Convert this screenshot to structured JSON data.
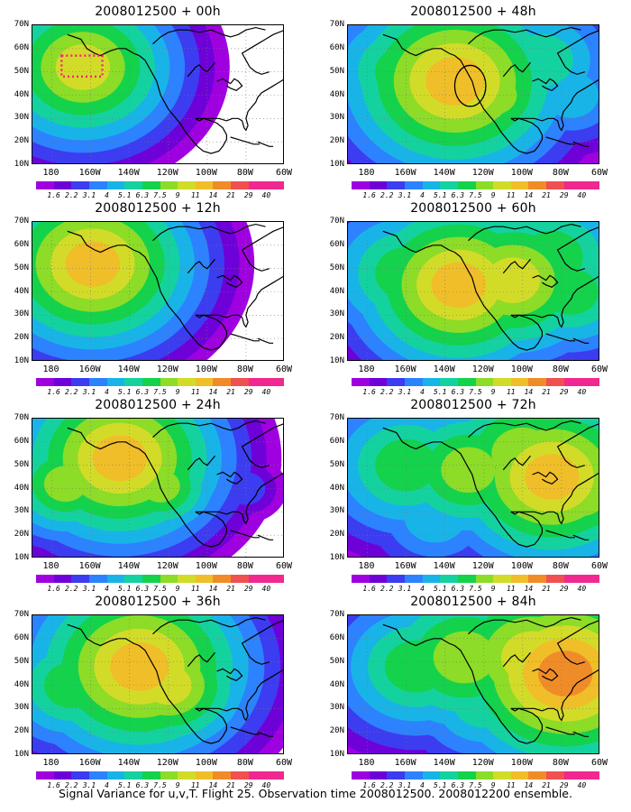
{
  "chart_data": {
    "type": "heatmap",
    "colorbar": {
      "levels": [
        "1.6",
        "2.2",
        "3.1",
        "4",
        "5.1",
        "6.3",
        "7.5",
        "9",
        "11",
        "14",
        "21",
        "29",
        "40"
      ],
      "colors": [
        "#9f00e0",
        "#6e00d8",
        "#3c3cf0",
        "#2c82ff",
        "#18b4e8",
        "#14d2a0",
        "#14d24c",
        "#8cdc28",
        "#d2dc28",
        "#f0be28",
        "#f08c28",
        "#f05050",
        "#f02890"
      ]
    },
    "axes": {
      "ylabels": [
        "70N",
        "60N",
        "50N",
        "40N",
        "30N",
        "20N",
        "10N"
      ],
      "xlabels": [
        "180",
        "160W",
        "140W",
        "120W",
        "100W",
        "80W",
        "60W"
      ],
      "lon_range": [
        170,
        300
      ],
      "lat_range": [
        10,
        70
      ],
      "grid": true
    },
    "panels": [
      {
        "title": "2008012500 + 00h",
        "max_level": 9,
        "blobs": [
          {
            "lon": 196,
            "lat": 52,
            "r": 14,
            "s": 9
          },
          {
            "lon": 190,
            "lat": 42,
            "r": 10,
            "s": 7
          },
          {
            "lon": 176,
            "lat": 62,
            "r": 12,
            "s": 5
          },
          {
            "lon": 222,
            "lat": 46,
            "r": 12,
            "s": 5
          },
          {
            "lon": 205,
            "lat": 36,
            "r": 8,
            "s": 3
          }
        ],
        "dashed_box": {
          "lon": [
            185,
            206
          ],
          "lat": [
            48,
            57
          ]
        }
      },
      {
        "title": "2008012500 + 12h",
        "max_level": 10,
        "blobs": [
          {
            "lon": 201,
            "lat": 52,
            "r": 14,
            "s": 10
          },
          {
            "lon": 188,
            "lat": 44,
            "r": 12,
            "s": 7
          },
          {
            "lon": 225,
            "lat": 48,
            "r": 14,
            "s": 6
          },
          {
            "lon": 208,
            "lat": 35,
            "r": 12,
            "s": 4
          },
          {
            "lon": 240,
            "lat": 38,
            "r": 10,
            "s": 3
          }
        ]
      },
      {
        "title": "2008012500 + 24h",
        "max_level": 10,
        "blobs": [
          {
            "lon": 215,
            "lat": 53,
            "r": 14,
            "s": 10
          },
          {
            "lon": 187,
            "lat": 42,
            "r": 11,
            "s": 8
          },
          {
            "lon": 236,
            "lat": 41,
            "r": 10,
            "s": 8
          },
          {
            "lon": 200,
            "lat": 30,
            "r": 14,
            "s": 5
          },
          {
            "lon": 255,
            "lat": 55,
            "r": 12,
            "s": 4
          },
          {
            "lon": 280,
            "lat": 40,
            "r": 10,
            "s": 3
          }
        ]
      },
      {
        "title": "2008012500 + 36h",
        "max_level": 10,
        "blobs": [
          {
            "lon": 225,
            "lat": 48,
            "r": 15,
            "s": 10
          },
          {
            "lon": 240,
            "lat": 40,
            "r": 12,
            "s": 9
          },
          {
            "lon": 190,
            "lat": 40,
            "r": 14,
            "s": 7
          },
          {
            "lon": 205,
            "lat": 30,
            "r": 16,
            "s": 5
          },
          {
            "lon": 260,
            "lat": 55,
            "r": 14,
            "s": 5
          },
          {
            "lon": 285,
            "lat": 45,
            "r": 12,
            "s": 3
          }
        ]
      },
      {
        "title": "2008012500 + 48h",
        "max_level": 10,
        "blobs": [
          {
            "lon": 225,
            "lat": 46,
            "r": 15,
            "s": 10
          },
          {
            "lon": 245,
            "lat": 40,
            "r": 12,
            "s": 8
          },
          {
            "lon": 200,
            "lat": 50,
            "r": 16,
            "s": 7
          },
          {
            "lon": 270,
            "lat": 55,
            "r": 16,
            "s": 6
          },
          {
            "lon": 215,
            "lat": 30,
            "r": 16,
            "s": 5
          },
          {
            "lon": 285,
            "lat": 40,
            "r": 14,
            "s": 5
          }
        ],
        "circle": {
          "lon": 233,
          "lat": 44,
          "rlon": 8,
          "rlat": 8
        }
      },
      {
        "title": "2008012500 + 60h",
        "max_level": 10,
        "blobs": [
          {
            "lon": 227,
            "lat": 43,
            "r": 14,
            "s": 10
          },
          {
            "lon": 255,
            "lat": 45,
            "r": 14,
            "s": 9
          },
          {
            "lon": 200,
            "lat": 48,
            "r": 16,
            "s": 7
          },
          {
            "lon": 275,
            "lat": 55,
            "r": 16,
            "s": 7
          },
          {
            "lon": 285,
            "lat": 40,
            "r": 14,
            "s": 7
          },
          {
            "lon": 215,
            "lat": 28,
            "r": 16,
            "s": 5
          }
        ]
      },
      {
        "title": "2008012500 + 72h",
        "max_level": 10,
        "blobs": [
          {
            "lon": 275,
            "lat": 45,
            "r": 14,
            "s": 10
          },
          {
            "lon": 232,
            "lat": 48,
            "r": 14,
            "s": 8
          },
          {
            "lon": 260,
            "lat": 55,
            "r": 16,
            "s": 8
          },
          {
            "lon": 200,
            "lat": 50,
            "r": 16,
            "s": 7
          },
          {
            "lon": 290,
            "lat": 38,
            "r": 14,
            "s": 8
          },
          {
            "lon": 215,
            "lat": 28,
            "r": 16,
            "s": 5
          }
        ]
      },
      {
        "title": "2008012500 + 84h",
        "max_level": 11,
        "blobs": [
          {
            "lon": 282,
            "lat": 45,
            "r": 14,
            "s": 11
          },
          {
            "lon": 265,
            "lat": 52,
            "r": 16,
            "s": 9
          },
          {
            "lon": 230,
            "lat": 52,
            "r": 16,
            "s": 8
          },
          {
            "lon": 205,
            "lat": 48,
            "r": 16,
            "s": 7
          },
          {
            "lon": 292,
            "lat": 38,
            "r": 14,
            "s": 9
          },
          {
            "lon": 240,
            "lat": 33,
            "r": 16,
            "s": 6
          }
        ]
      }
    ]
  },
  "footer": "Signal Variance for u,v,T. Flight 25. Observation time 2008012500. 2008012200 ensemble."
}
